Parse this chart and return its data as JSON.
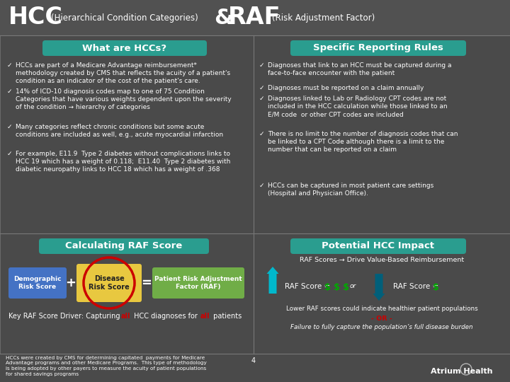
{
  "bg_color": "#4a4a4a",
  "header_bg": "#515151",
  "teal_color": "#2a9d8f",
  "white": "#ffffff",
  "blue_box": "#4472c4",
  "yellow_box": "#e8c840",
  "green_box": "#70ad47",
  "red_circle": "#cc0000",
  "red_text": "#cc0000",
  "teal_up_arrow": "#00b8cc",
  "teal_down_arrow": "#005f7a",
  "dollar_green": "#00aa00",
  "border_color": "#787878",
  "section1_title": "What are HCCs?",
  "section2_title": "Specific Reporting Rules",
  "section3_title": "Calculating RAF Score",
  "section4_title": "Potential HCC Impact",
  "left_bullets": [
    "HCCs are part of a Medicare Advantage reimbursement*\nmethodology created by CMS that reflects the acuity of a patient's\ncondition as an indicator of the cost of the patient's care.",
    "14% of ICD-10 diagnosis codes map to one of 75 Condition\nCategories that have various weights dependent upon the severity\nof the condition → hierarchy of categories",
    "Many categories reflect chronic conditions but some acute\nconditions are included as well, e.g., acute myocardial infarction",
    "For example, E11.9  Type 2 diabetes without complications links to\nHCC 19 which has a weight of 0.118;  E11.40  Type 2 diabetes with\ndiabetic neuropathy links to HCC 18 which has a weight of .368"
  ],
  "right_bullets": [
    "Diagnoses that link to an HCC must be captured during a\nface-to-face encounter with the patient",
    "Diagnoses must be reported on a claim annually",
    "Diagnoses linked to Lab or Radiology CPT codes are not\nincluded in the HCC calculation while those linked to an\nE/M code  or other CPT codes are included",
    "There is no limit to the number of diagnosis codes that can\nbe linked to a CPT Code although there is a limit to the\nnumber that can be reported on a claim",
    "HCCs can be captured in most patient care settings\n(Hospital and Physician Office)."
  ],
  "footnote": "HCCs were created by CMS for determining capitated  payments for Medicare\nAdvantage programs and other Medicare Programs.  This type of methodology\nis being adopted by other payers to measure the acuity of patient populations\nfor shared savings programs",
  "raf_subtitle": "RAF Scores → Drive Value-Based Reimbursement",
  "raf_lower_note1": "Lower RAF scores could indicate healthier patient populations",
  "raf_lower_or": "- OR -",
  "raf_lower_note2": "Failure to fully capture the population’s full disease burden"
}
